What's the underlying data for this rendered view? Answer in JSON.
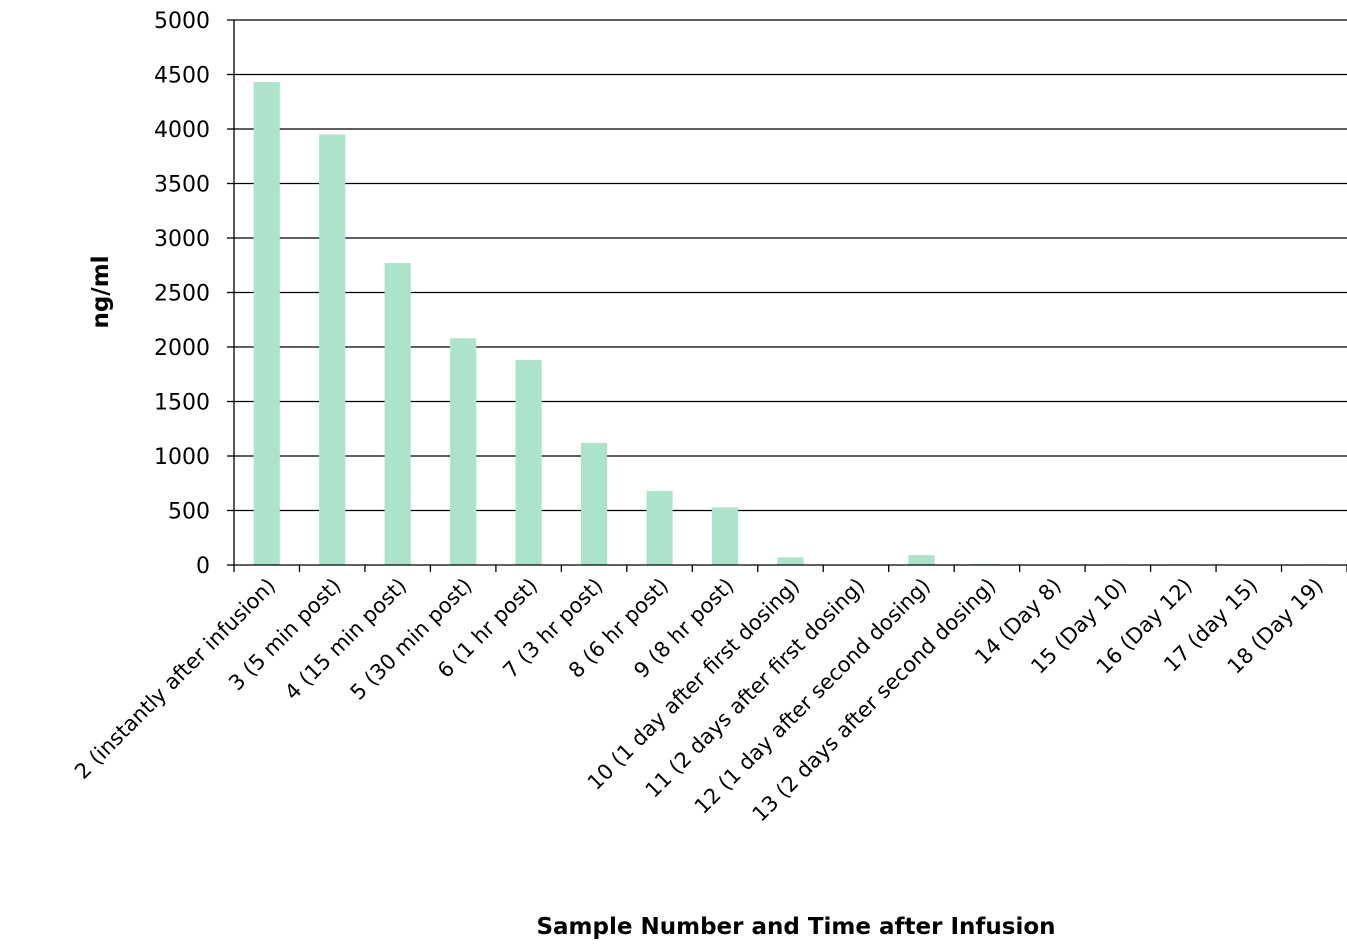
{
  "chart_data": {
    "type": "bar",
    "title": "",
    "xlabel": "Sample Number and Time after Infusion",
    "ylabel": "ng/ml",
    "ylim": [
      0,
      5000
    ],
    "yticks": [
      0,
      500,
      1000,
      1500,
      2000,
      2500,
      3000,
      3500,
      4000,
      4500,
      5000
    ],
    "grid": true,
    "legend": "none",
    "bar_color": "#abe3cb",
    "categories": [
      "2 (instantly after infusion)",
      "3 (5 min post)",
      "4 (15 min post)",
      "5 (30 min post)",
      "6 (1 hr post)",
      "7 (3 hr post)",
      "8 (6 hr post)",
      "9 (8 hr post)",
      "10 (1 day after first dosing)",
      "11 (2 days after first dosing)",
      "12 (1 day after second dosing)",
      "13  (2 days after second dosing)",
      "14 (Day 8)",
      "15 (Day 10)",
      "16 (Day 12)",
      "17 (day 15)",
      "18 (Day 19)"
    ],
    "values": [
      4430,
      3950,
      2770,
      2080,
      1880,
      1120,
      680,
      530,
      70,
      0,
      90,
      10,
      0,
      5,
      5,
      0,
      5
    ]
  }
}
